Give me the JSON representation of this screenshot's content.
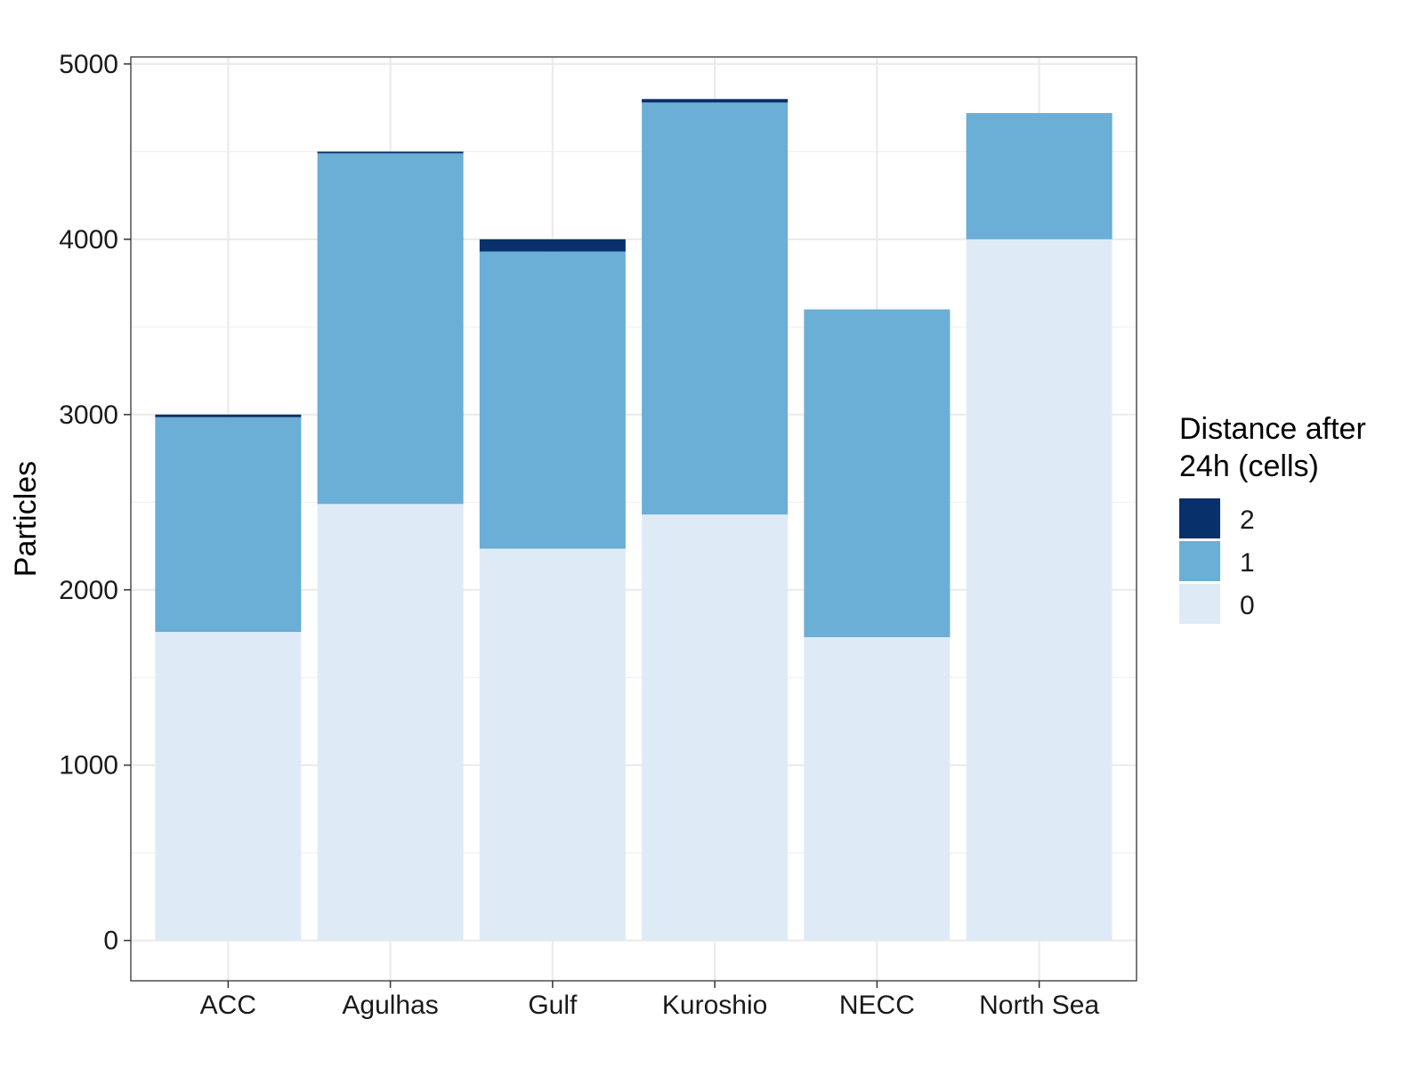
{
  "chart_data": {
    "type": "bar",
    "stacked": true,
    "categories": [
      "ACC",
      "Agulhas",
      "Gulf",
      "Kuroshio",
      "NECC",
      "North Sea"
    ],
    "series": [
      {
        "name": "0",
        "values": [
          1760,
          2490,
          2235,
          2430,
          1730,
          4000
        ],
        "color": "#deebf7"
      },
      {
        "name": "1",
        "values": [
          1225,
          2000,
          1695,
          2350,
          1870,
          720
        ],
        "color": "#6baed6"
      },
      {
        "name": "2",
        "values": [
          15,
          10,
          70,
          20,
          0,
          0
        ],
        "color": "#08306b"
      }
    ],
    "xlabel": "",
    "ylabel": "Particles",
    "ylim": [
      -230,
      5040
    ],
    "yticks": [
      0,
      1000,
      2000,
      3000,
      4000,
      5000
    ],
    "grid": true,
    "legend": {
      "title_lines": [
        "Distance after",
        "24h (cells)"
      ],
      "position": "right",
      "order": [
        "2",
        "1",
        "0"
      ]
    }
  }
}
